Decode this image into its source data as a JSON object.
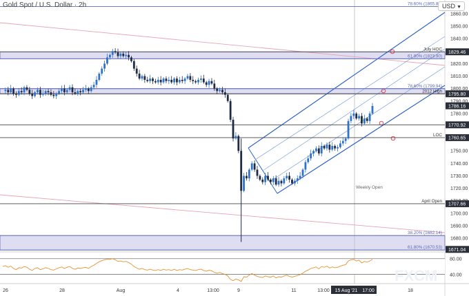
{
  "header": {
    "title": "Gold Spot / U.S. Dollar · 2h",
    "currency": "USD"
  },
  "chart_data": {
    "type": "candlestick",
    "title": "Gold Spot / U.S. Dollar · 2h",
    "y_range": [
      1669,
      1871
    ],
    "y_ticks": [
      1860,
      1850,
      1840,
      1830,
      1820,
      1810,
      1800,
      1790,
      1780,
      1770,
      1760,
      1750,
      1740,
      1730,
      1720,
      1710,
      1700,
      1690,
      1680,
      1670
    ],
    "x_ticks": [
      "26",
      "28",
      "Aug",
      "4",
      "13:00",
      "9",
      "11",
      "13:00",
      "15 Aug '21",
      "17:00",
      "18"
    ],
    "price_badges": [
      {
        "value": "1829.46",
        "price": 1829.46,
        "style": "dark"
      },
      {
        "value": "1795.80",
        "price": 1795.8,
        "style": "dark"
      },
      {
        "value": "1786.16",
        "price": 1786.16,
        "style": "dark"
      },
      {
        "value": "1770.92",
        "price": 1770.92,
        "style": "dark"
      },
      {
        "value": "1760.65",
        "price": 1760.65,
        "style": "dark"
      },
      {
        "value": "1707.66",
        "price": 1707.66,
        "style": "dark"
      },
      {
        "value": "1671.04",
        "price": 1671.04,
        "style": "dark"
      }
    ],
    "horizontal_levels": [
      {
        "price": 1865.8,
        "label": "78.60% (1865.80)",
        "color": "#5b6bb4"
      },
      {
        "price": 1829.46,
        "label": "July HOC",
        "color": "#444444"
      },
      {
        "price": 1823.9,
        "label": "61.80% (1823.90)",
        "color": "#5b6bb4"
      },
      {
        "price": 1799.94,
        "label": "78.60% (1799.94)",
        "color": "#5b6bb4"
      },
      {
        "price": 1795.8,
        "label": "2012 High",
        "color": "#444444"
      },
      {
        "price": 1770.92,
        "label": "",
        "color": "#444444"
      },
      {
        "price": 1760.65,
        "label": "LOC",
        "color": "#444444"
      },
      {
        "price": 1707.66,
        "label": "April Open",
        "color": "#444444"
      },
      {
        "price": 1682.14,
        "label": "38.20% (1682.14)",
        "color": "#5b6bb4"
      },
      {
        "price": 1670.53,
        "label": "61.80% (1670.53)",
        "color": "#5b6bb4"
      }
    ],
    "zones": [
      {
        "from": 1823.9,
        "to": 1829.46
      },
      {
        "from": 1795.8,
        "to": 1799.94
      },
      {
        "from": 1670.53,
        "to": 1682.14
      }
    ],
    "annotations": [
      "Weekly Open"
    ],
    "price_series": [
      1798,
      1799,
      1797,
      1800,
      1796,
      1795,
      1798,
      1797,
      1801,
      1799,
      1796,
      1794,
      1797,
      1799,
      1795,
      1796,
      1798,
      1797,
      1795,
      1794,
      1796,
      1798,
      1800,
      1797,
      1799,
      1801,
      1797,
      1796,
      1798,
      1797,
      1799,
      1800,
      1798,
      1801,
      1803,
      1807,
      1812,
      1816,
      1820,
      1825,
      1827,
      1830,
      1829,
      1826,
      1828,
      1826,
      1827,
      1825,
      1822,
      1816,
      1812,
      1808,
      1810,
      1807,
      1806,
      1808,
      1806,
      1805,
      1807,
      1805,
      1808,
      1806,
      1807,
      1805,
      1808,
      1805,
      1807,
      1806,
      1808,
      1810,
      1807,
      1806,
      1805,
      1807,
      1808,
      1805,
      1803,
      1806,
      1804,
      1800,
      1798,
      1799,
      1797,
      1795,
      1790,
      1775,
      1760,
      1762,
      1750,
      1718,
      1730,
      1728,
      1735,
      1740,
      1735,
      1730,
      1727,
      1725,
      1730,
      1727,
      1725,
      1728,
      1723,
      1726,
      1724,
      1728,
      1730,
      1727,
      1724,
      1726,
      1728,
      1730,
      1735,
      1741,
      1744,
      1748,
      1750,
      1752,
      1748,
      1754,
      1752,
      1755,
      1751,
      1754,
      1752,
      1753,
      1756,
      1758,
      1760,
      1774,
      1778,
      1780,
      1776,
      1778,
      1772,
      1776,
      1774,
      1780,
      1786
    ],
    "rsi": {
      "upper": 80,
      "lower": 40,
      "y_ticks": [
        80,
        40
      ],
      "range": [
        20,
        90
      ],
      "values": [
        60,
        62,
        58,
        61,
        55,
        52,
        57,
        56,
        60,
        58,
        53,
        50,
        55,
        57,
        52,
        54,
        57,
        55,
        52,
        51,
        54,
        57,
        59,
        55,
        58,
        60,
        55,
        53,
        56,
        55,
        57,
        58,
        55,
        60,
        63,
        68,
        72,
        75,
        77,
        79,
        78,
        80,
        77,
        73,
        74,
        72,
        73,
        70,
        66,
        60,
        56,
        53,
        55,
        52,
        51,
        53,
        51,
        50,
        52,
        50,
        53,
        51,
        52,
        50,
        53,
        50,
        52,
        51,
        53,
        55,
        52,
        51,
        50,
        52,
        53,
        50,
        48,
        51,
        49,
        45,
        43,
        45,
        42,
        40,
        36,
        27,
        24,
        28,
        26,
        22,
        34,
        33,
        38,
        42,
        38,
        35,
        33,
        32,
        36,
        34,
        33,
        36,
        31,
        34,
        33,
        36,
        38,
        35,
        33,
        35,
        37,
        39,
        43,
        48,
        51,
        55,
        57,
        59,
        54,
        60,
        58,
        61,
        56,
        59,
        57,
        58,
        61,
        63,
        65,
        74,
        77,
        78,
        74,
        76,
        69,
        73,
        71,
        74,
        78
      ]
    },
    "watermark": "FXCM"
  }
}
